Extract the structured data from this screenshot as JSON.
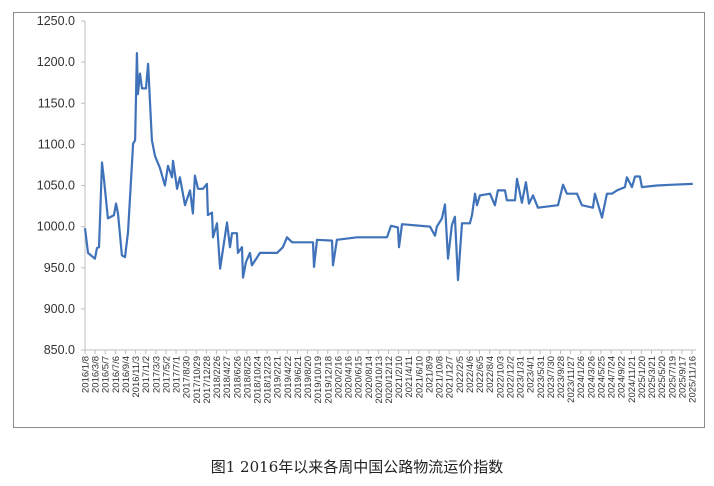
{
  "caption": "图1 2016年以来各周中国公路物流运价指数",
  "chart_data": {
    "type": "line",
    "title": "",
    "xlabel": "",
    "ylabel": "",
    "ylim": [
      850,
      1250
    ],
    "xlim": [
      "2016-01-08",
      "2025-11-16"
    ],
    "yticks": [
      "850.0",
      "900.0",
      "950.0",
      "1000.0",
      "1050.0",
      "1100.0",
      "1150.0",
      "1200.0",
      "1250.0"
    ],
    "xticks": [
      "2016/1/8",
      "2016/3/8",
      "2016/5/7",
      "2016/7/6",
      "2016/9/4",
      "2016/11/3",
      "2017/1/2",
      "2017/3/3",
      "2017/5/2",
      "2017/7/1",
      "2017/8/30",
      "2017/10/29",
      "2017/12/28",
      "2018/2/26",
      "2018/4/27",
      "2018/6/26",
      "2018/8/25",
      "2018/10/24",
      "2018/12/23",
      "2019/2/21",
      "2019/4/22",
      "2019/6/21",
      "2019/8/20",
      "2019/10/19",
      "2019/12/18",
      "2020/2/16",
      "2020/4/16",
      "2020/6/15",
      "2020/8/14",
      "2020/10/13",
      "2020/12/12",
      "2021/2/10",
      "2021/4/11",
      "2021/6/10",
      "2021/8/9",
      "2021/10/8",
      "2021/12/7",
      "2022/2/5",
      "2022/4/6",
      "2022/6/5",
      "2022/8/4",
      "2022/10/3",
      "2022/12/2",
      "2023/1/31",
      "2023/4/1",
      "2023/5/31",
      "2023/7/30",
      "2023/9/28",
      "2023/11/27",
      "2024/1/26",
      "2024/3/26",
      "2024/5/25",
      "2024/7/24",
      "2024/9/22",
      "2024/11/21",
      "2025/1/20",
      "2025/3/21",
      "2025/5/20",
      "2025/7/19",
      "2025/9/17",
      "2025/11/16"
    ],
    "grid": false,
    "legend": "none",
    "line_color": "#3f72b9",
    "series": [
      {
        "points": [
          [
            "2016-01-08",
            998
          ],
          [
            "2016-01-26",
            968
          ],
          [
            "2016-03-07",
            961
          ],
          [
            "2016-03-19",
            974
          ],
          [
            "2016-03-31",
            975
          ],
          [
            "2016-04-18",
            1078
          ],
          [
            "2016-04-30",
            1056
          ],
          [
            "2016-05-23",
            1010
          ],
          [
            "2016-06-28",
            1014
          ],
          [
            "2016-07-10",
            1028
          ],
          [
            "2016-07-22",
            1016
          ],
          [
            "2016-08-14",
            965
          ],
          [
            "2016-09-01",
            963
          ],
          [
            "2016-09-19",
            993
          ],
          [
            "2016-10-19",
            1101
          ],
          [
            "2016-10-31",
            1105
          ],
          [
            "2016-11-11",
            1211
          ],
          [
            "2016-11-17",
            1161
          ],
          [
            "2016-11-29",
            1186
          ],
          [
            "2016-12-11",
            1168
          ],
          [
            "2017-01-04",
            1168
          ],
          [
            "2017-01-16",
            1198
          ],
          [
            "2017-02-08",
            1105
          ],
          [
            "2017-02-26",
            1086
          ],
          [
            "2017-03-28",
            1071
          ],
          [
            "2017-04-26",
            1050
          ],
          [
            "2017-05-14",
            1074
          ],
          [
            "2017-06-07",
            1060
          ],
          [
            "2017-06-13",
            1080
          ],
          [
            "2017-07-07",
            1046
          ],
          [
            "2017-07-24",
            1060
          ],
          [
            "2017-08-23",
            1026
          ],
          [
            "2017-09-22",
            1044
          ],
          [
            "2017-10-09",
            1016
          ],
          [
            "2017-10-21",
            1062
          ],
          [
            "2017-11-08",
            1046
          ],
          [
            "2017-12-08",
            1046
          ],
          [
            "2017-12-31",
            1052
          ],
          [
            "2018-01-06",
            1014
          ],
          [
            "2018-01-30",
            1017
          ],
          [
            "2018-02-05",
            987
          ],
          [
            "2018-03-01",
            1004
          ],
          [
            "2018-03-19",
            949
          ],
          [
            "2018-04-29",
            1005
          ],
          [
            "2018-05-17",
            975
          ],
          [
            "2018-05-29",
            992
          ],
          [
            "2018-06-27",
            992
          ],
          [
            "2018-07-03",
            968
          ],
          [
            "2018-07-27",
            975
          ],
          [
            "2018-08-02",
            938
          ],
          [
            "2018-08-20",
            957
          ],
          [
            "2018-09-12",
            968
          ],
          [
            "2018-09-24",
            953
          ],
          [
            "2018-11-11",
            968
          ],
          [
            "2019-02-20",
            968
          ],
          [
            "2019-03-27",
            975
          ],
          [
            "2019-04-20",
            987
          ],
          [
            "2019-05-20",
            981
          ],
          [
            "2019-09-21",
            981
          ],
          [
            "2019-09-27",
            951
          ],
          [
            "2019-10-15",
            984
          ],
          [
            "2020-01-12",
            983
          ],
          [
            "2020-01-18",
            953
          ],
          [
            "2020-02-10",
            984
          ],
          [
            "2020-06-08",
            987
          ],
          [
            "2020-12-03",
            987
          ],
          [
            "2020-12-27",
            1001
          ],
          [
            "2021-02-06",
            999
          ],
          [
            "2021-02-12",
            975
          ],
          [
            "2021-03-02",
            1003
          ],
          [
            "2021-08-15",
            1000
          ],
          [
            "2021-09-14",
            989
          ],
          [
            "2021-09-25",
            1000
          ],
          [
            "2021-10-25",
            1010
          ],
          [
            "2021-11-12",
            1027
          ],
          [
            "2021-11-30",
            961
          ],
          [
            "2021-12-23",
            1002
          ],
          [
            "2022-01-10",
            1012
          ],
          [
            "2022-01-28",
            935
          ],
          [
            "2022-02-21",
            1004
          ],
          [
            "2022-04-09",
            1004
          ],
          [
            "2022-04-21",
            1014
          ],
          [
            "2022-05-09",
            1040
          ],
          [
            "2022-05-21",
            1026
          ],
          [
            "2022-06-07",
            1038
          ],
          [
            "2022-08-06",
            1040
          ],
          [
            "2022-09-04",
            1026
          ],
          [
            "2022-09-22",
            1044
          ],
          [
            "2022-11-03",
            1044
          ],
          [
            "2022-11-14",
            1032
          ],
          [
            "2023-01-01",
            1032
          ],
          [
            "2023-01-13",
            1058
          ],
          [
            "2023-02-11",
            1029
          ],
          [
            "2023-03-07",
            1054
          ],
          [
            "2023-03-25",
            1028
          ],
          [
            "2023-04-18",
            1038
          ],
          [
            "2023-05-17",
            1023
          ],
          [
            "2023-09-13",
            1026
          ],
          [
            "2023-10-13",
            1051
          ],
          [
            "2023-11-05",
            1040
          ],
          [
            "2024-01-04",
            1040
          ],
          [
            "2024-02-02",
            1026
          ],
          [
            "2024-04-07",
            1023
          ],
          [
            "2024-04-19",
            1040
          ],
          [
            "2024-05-31",
            1011
          ],
          [
            "2024-06-29",
            1040
          ],
          [
            "2024-07-29",
            1040
          ],
          [
            "2024-08-28",
            1044
          ],
          [
            "2024-10-14",
            1048
          ],
          [
            "2024-10-26",
            1060
          ],
          [
            "2024-11-25",
            1048
          ],
          [
            "2024-12-13",
            1061
          ],
          [
            "2025-01-11",
            1061
          ],
          [
            "2025-01-23",
            1048
          ],
          [
            "2025-04-22",
            1050
          ],
          [
            "2025-07-26",
            1051
          ],
          [
            "2025-11-21",
            1052
          ]
        ]
      }
    ]
  }
}
